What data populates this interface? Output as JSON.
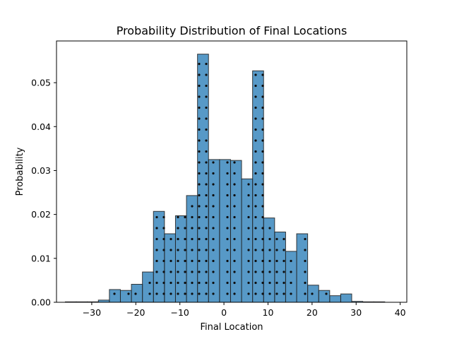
{
  "chart_data": {
    "type": "bar",
    "title": "Probability Distribution of Final Locations",
    "xlabel": "Final Location",
    "ylabel": "Probability",
    "xlim": [
      -38,
      41.5
    ],
    "ylim": [
      0,
      0.0595
    ],
    "xticks": [
      -30,
      -20,
      -10,
      0,
      10,
      20,
      30,
      40
    ],
    "yticks": [
      0.0,
      0.01,
      0.02,
      0.03,
      0.04,
      0.05
    ],
    "ytick_labels": [
      "0.00",
      "0.01",
      "0.02",
      "0.03",
      "0.04",
      "0.05"
    ],
    "bin_edges": [
      -36.0,
      -33.5,
      -31.0,
      -28.5,
      -26.0,
      -23.5,
      -21.0,
      -18.5,
      -16.0,
      -13.5,
      -11.0,
      -8.5,
      -6.0,
      -3.5,
      -1.0,
      1.5,
      4.0,
      6.5,
      9.0,
      11.5,
      14.0,
      16.5,
      19.0,
      21.5,
      24.0,
      26.5,
      29.0,
      31.5,
      34.0,
      36.5
    ],
    "values": [
      0.0001,
      0.0001,
      0.0001,
      0.0005,
      0.0029,
      0.0027,
      0.0041,
      0.0069,
      0.0207,
      0.0156,
      0.0197,
      0.0243,
      0.0565,
      0.0325,
      0.0325,
      0.0323,
      0.0281,
      0.0527,
      0.0192,
      0.016,
      0.0116,
      0.0156,
      0.0039,
      0.0027,
      0.0015,
      0.0019,
      0.0002,
      0.0001,
      0.0001
    ],
    "bar_color": "#1f77b4",
    "bar_alpha": 0.75,
    "hatch": "dots",
    "grid": false
  }
}
